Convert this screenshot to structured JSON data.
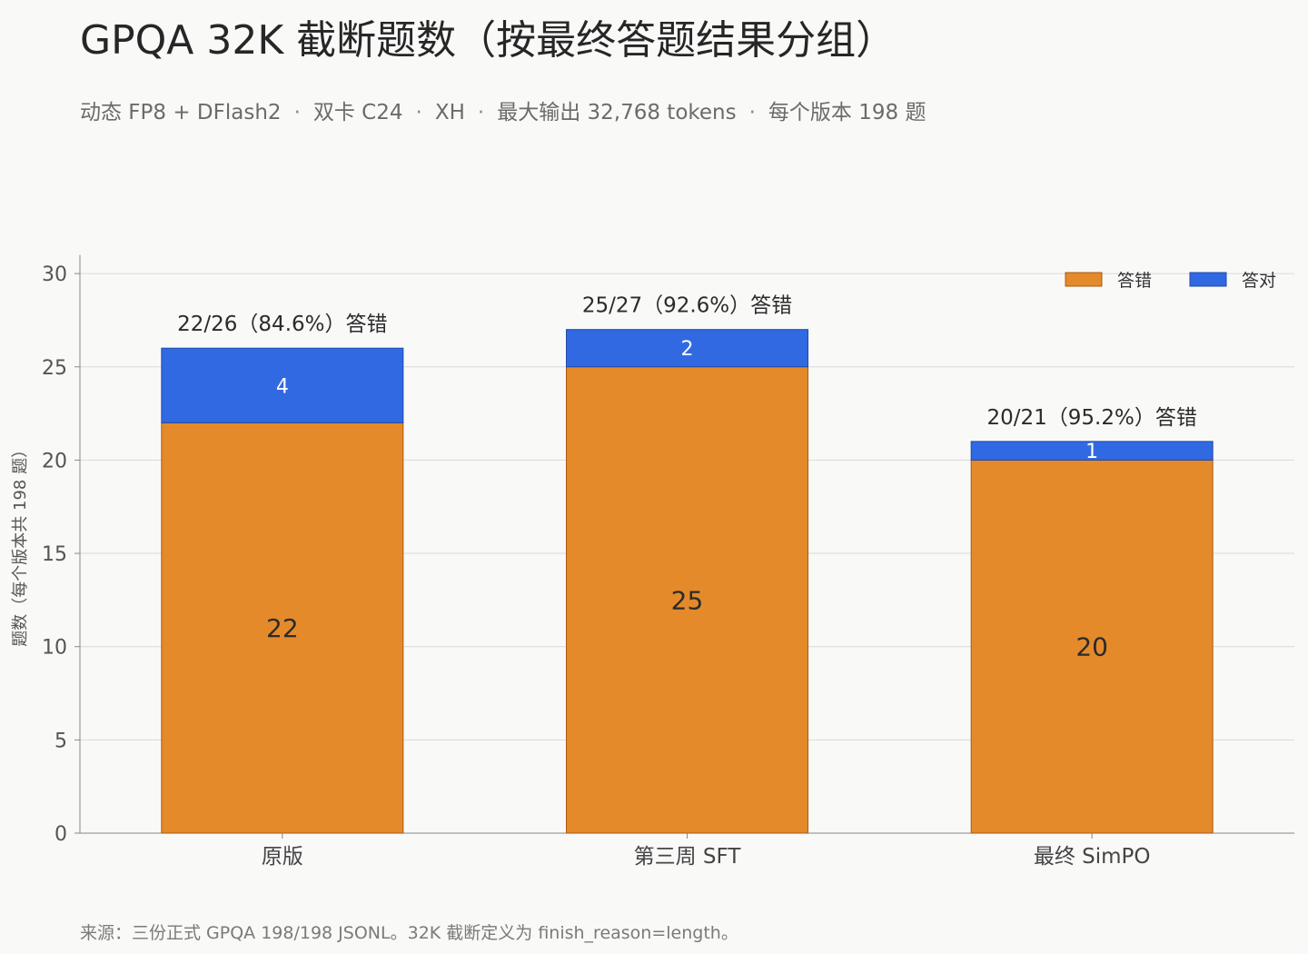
{
  "title": "GPQA 32K 截断题数（按最终答题结果分组）",
  "subtitle_parts": [
    "动态 FP8 + DFlash2",
    "双卡 C24",
    "XH",
    "最大输出 32,768 tokens",
    "每个版本 198 题"
  ],
  "subtitle_separator": "·",
  "source": "来源：三份正式 GPQA 198/198 JSONL。32K 截断定义为 finish_reason=length。",
  "chart_data": {
    "type": "bar",
    "stacked": true,
    "categories": [
      "原版",
      "第三周 SFT",
      "最终 SimPO"
    ],
    "series": [
      {
        "name": "答错",
        "values": [
          22,
          25,
          20
        ],
        "color": "#e48a2b"
      },
      {
        "name": "答对",
        "values": [
          4,
          2,
          1
        ],
        "color": "#3169e3"
      }
    ],
    "bar_top_labels": [
      "22/26（84.6%）答错",
      "25/27（92.6%）答错",
      "20/21（95.2%）答错"
    ],
    "ylabel": "题数（每个版本共 198 题）",
    "yticks": [
      0,
      5,
      10,
      15,
      20,
      25,
      30
    ],
    "ylim": [
      0,
      31
    ],
    "grid": true,
    "legend_position": "top-right"
  }
}
